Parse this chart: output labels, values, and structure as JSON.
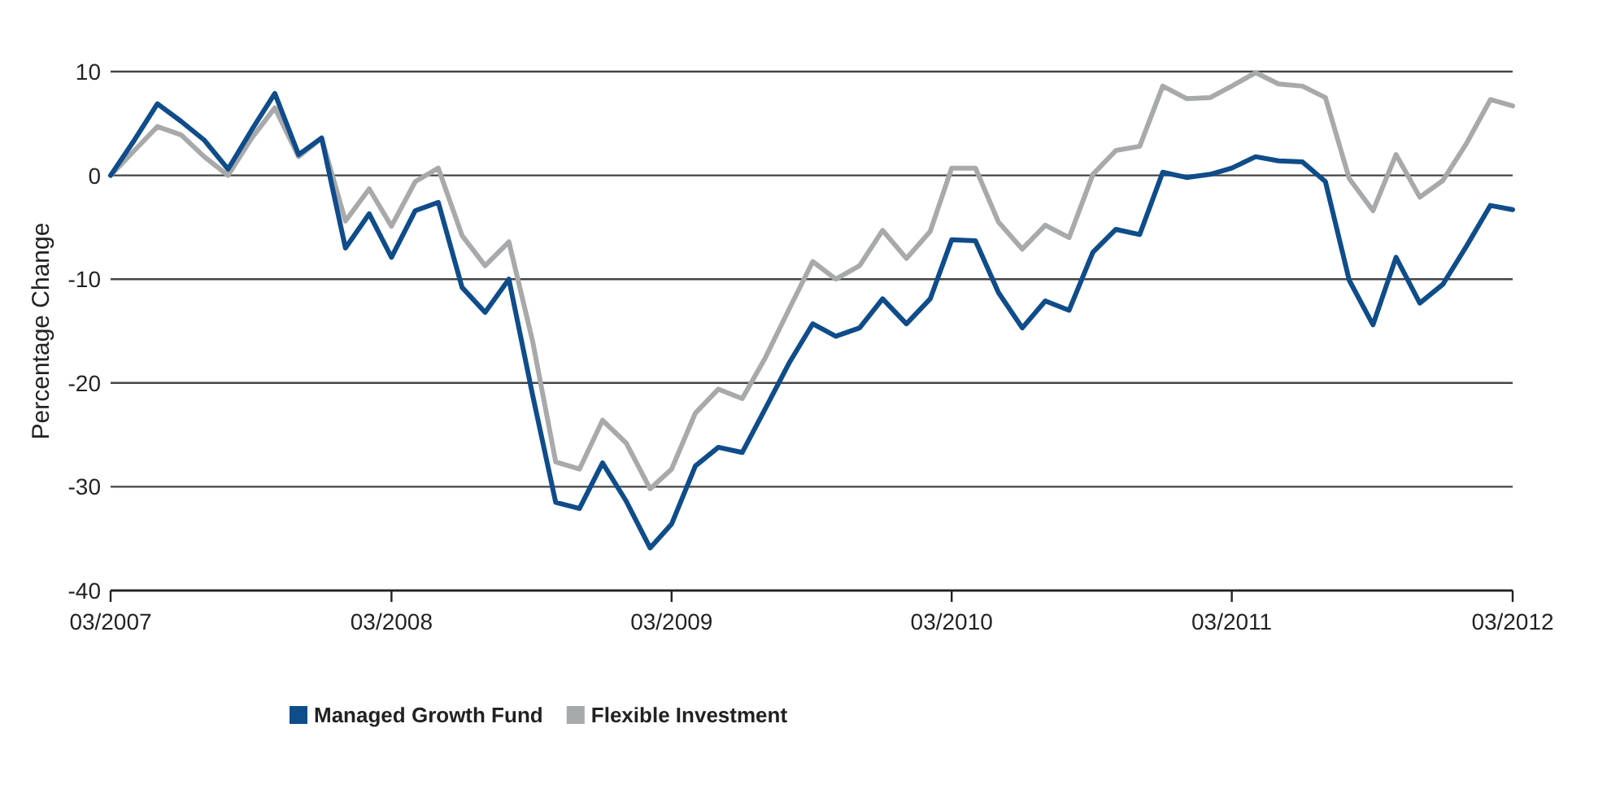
{
  "chart_data": {
    "type": "line",
    "ylabel": "Percentage Change",
    "x": [
      "2007-03",
      "2007-04",
      "2007-05",
      "2007-06",
      "2007-07",
      "2007-08",
      "2007-09",
      "2007-10",
      "2007-11",
      "2007-12",
      "2008-01",
      "2008-02",
      "2008-03",
      "2008-04",
      "2008-05",
      "2008-06",
      "2008-07",
      "2008-08",
      "2008-09",
      "2008-10",
      "2008-11",
      "2008-12",
      "2009-01",
      "2009-02",
      "2009-03",
      "2009-04",
      "2009-05",
      "2009-06",
      "2009-07",
      "2009-08",
      "2009-09",
      "2009-10",
      "2009-11",
      "2009-12",
      "2010-01",
      "2010-02",
      "2010-03",
      "2010-04",
      "2010-05",
      "2010-06",
      "2010-07",
      "2010-08",
      "2010-09",
      "2010-10",
      "2010-11",
      "2010-12",
      "2011-01",
      "2011-02",
      "2011-03",
      "2011-04",
      "2011-05",
      "2011-06",
      "2011-07",
      "2011-08",
      "2011-09",
      "2011-10",
      "2011-11",
      "2011-12",
      "2012-01",
      "2012-02",
      "2012-03"
    ],
    "series": [
      {
        "name": "Managed Growth Fund",
        "color": "#0f4c8a",
        "values": [
          0,
          3.4,
          6.9,
          5.2,
          3.4,
          0.6,
          4.4,
          7.9,
          2.0,
          3.6,
          -7.0,
          -3.7,
          -7.9,
          -3.4,
          -2.6,
          -10.8,
          -13.2,
          -10.0,
          -21.2,
          -31.5,
          -32.1,
          -27.7,
          -31.4,
          -35.9,
          -33.6,
          -28.0,
          -26.2,
          -26.7,
          -22.5,
          -18.1,
          -14.3,
          -15.5,
          -14.7,
          -11.9,
          -14.3,
          -11.9,
          -6.2,
          -6.3,
          -11.3,
          -14.7,
          -12.1,
          -13.0,
          -7.4,
          -5.2,
          -5.7,
          0.3,
          -0.2,
          0.1,
          0.7,
          1.8,
          1.4,
          1.3,
          -0.6,
          -10.1,
          -14.4,
          -7.9,
          -12.3,
          -10.5,
          -6.8,
          -2.9,
          -3.3
        ]
      },
      {
        "name": "Flexible Investment",
        "color": "#a8a9ab",
        "values": [
          0,
          2.4,
          4.7,
          3.9,
          1.8,
          0,
          3.6,
          6.5,
          1.8,
          3.6,
          -4.4,
          -1.3,
          -4.9,
          -0.6,
          0.7,
          -5.8,
          -8.7,
          -6.4,
          -16,
          -27.6,
          -28.3,
          -23.6,
          -25.8,
          -30.2,
          -28.3,
          -22.9,
          -20.6,
          -21.5,
          -17.6,
          -12.9,
          -8.3,
          -10.0,
          -8.7,
          -5.3,
          -8.0,
          -5.4,
          0.7,
          0.7,
          -4.5,
          -7.1,
          -4.8,
          -6.0,
          0.1,
          2.4,
          2.8,
          8.6,
          7.4,
          7.5,
          8.6,
          9.9,
          8.8,
          8.6,
          7.5,
          -0.3,
          -3.4,
          2.0,
          -2.1,
          -0.5,
          3.1,
          7.3,
          6.7
        ]
      }
    ],
    "xlim": [
      "2007-03",
      "2012-03"
    ],
    "xticks": [
      {
        "value": "2007-03",
        "label": "03/2007"
      },
      {
        "value": "2008-03",
        "label": "03/2008"
      },
      {
        "value": "2009-03",
        "label": "03/2009"
      },
      {
        "value": "2010-03",
        "label": "03/2010"
      },
      {
        "value": "2011-03",
        "label": "03/2011"
      },
      {
        "value": "2012-03",
        "label": "03/2012"
      }
    ],
    "ylim": [
      -40,
      10
    ],
    "yticks": [
      -40,
      -30,
      -20,
      -10,
      0,
      10
    ],
    "grid": "y",
    "legend": "bottom",
    "marker": "none",
    "line_style": "solid"
  }
}
